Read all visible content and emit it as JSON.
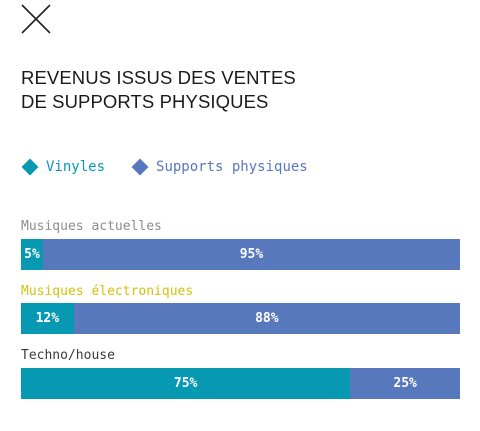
{
  "close_icon": "close-icon",
  "title_lines": [
    "REVENUS ISSUS DES VENTES",
    "DE SUPPORTS PHYSIQUES"
  ],
  "colors": {
    "vinyl": "#0899b2",
    "physical": "#5878be",
    "label_default": "#8c8c8c",
    "label_highlight": "#d4c20e",
    "label_dark": "#3a3a3a",
    "title": "#1a1a1a"
  },
  "chart_data": {
    "type": "bar",
    "stacked": true,
    "orientation": "horizontal",
    "title": "REVENUS ISSUS DES VENTES DE SUPPORTS PHYSIQUES",
    "legend_placement": "top-left",
    "categories": [
      "Musiques actuelles",
      "Musiques électroniques",
      "Techno/house"
    ],
    "series": [
      {
        "name": "Vinyles",
        "values": [
          5,
          12,
          75
        ],
        "labels": [
          "5%",
          "12%",
          "75%"
        ]
      },
      {
        "name": "Supports physiques",
        "values": [
          95,
          88,
          25
        ],
        "labels": [
          "95%",
          "88%",
          "25%"
        ]
      }
    ],
    "xlim": [
      0,
      100
    ]
  }
}
